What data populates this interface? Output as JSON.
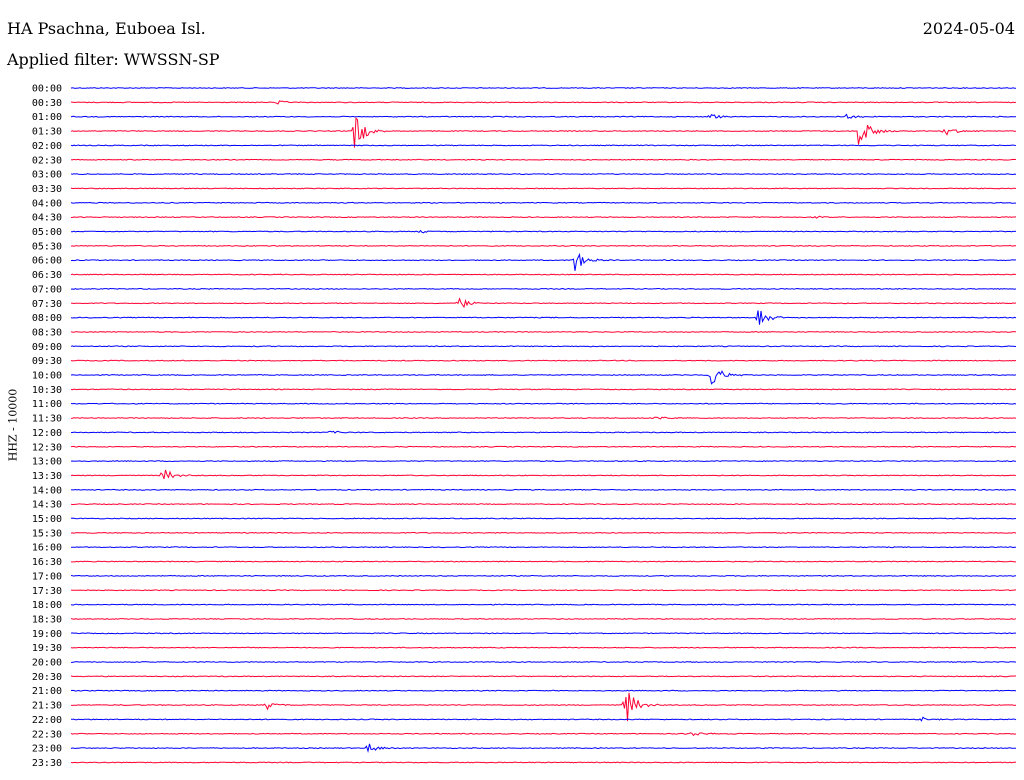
{
  "header": {
    "station": "HA Psachna, Euboea Isl.",
    "date": "2024-05-04",
    "filter": "Applied filter: WWSSN-SP"
  },
  "chart_data": {
    "type": "line",
    "title": "HA Psachna, Euboea Isl.",
    "subtitle": "Applied filter: WWSSN-SP",
    "date": "2024-05-04",
    "ylabel": "HHZ - 10000",
    "trace_colors": [
      "#0000ff",
      "#ff0033"
    ],
    "rows": [
      "00:00",
      "00:30",
      "01:00",
      "01:30",
      "02:00",
      "02:30",
      "03:00",
      "03:30",
      "04:00",
      "04:30",
      "05:00",
      "05:30",
      "06:00",
      "06:30",
      "07:00",
      "07:30",
      "08:00",
      "08:30",
      "09:00",
      "09:30",
      "10:00",
      "10:30",
      "11:00",
      "11:30",
      "12:00",
      "12:30",
      "13:00",
      "13:30",
      "14:00",
      "14:30",
      "15:00",
      "15:30",
      "16:00",
      "16:30",
      "17:00",
      "17:30",
      "18:00",
      "18:30",
      "19:00",
      "19:30",
      "20:00",
      "20:30",
      "21:00",
      "21:30",
      "22:00",
      "22:30",
      "23:00",
      "23:30"
    ],
    "events": [
      {
        "row": "01:30",
        "minute": 9.0,
        "amplitude": 2.5
      },
      {
        "row": "01:30",
        "minute": 25.0,
        "amplitude": 2.5
      },
      {
        "row": "01:30",
        "minute": 27.7,
        "amplitude": 0.8
      },
      {
        "row": "00:30",
        "minute": 6.5,
        "amplitude": 0.3
      },
      {
        "row": "01:00",
        "minute": 20.3,
        "amplitude": 0.4
      },
      {
        "row": "01:00",
        "minute": 24.6,
        "amplitude": 0.4
      },
      {
        "row": "05:00",
        "minute": 11.0,
        "amplitude": 0.3
      },
      {
        "row": "04:30",
        "minute": 23.6,
        "amplitude": 0.3
      },
      {
        "row": "06:00",
        "minute": 16.0,
        "amplitude": 1.4
      },
      {
        "row": "07:30",
        "minute": 12.3,
        "amplitude": 0.9
      },
      {
        "row": "08:00",
        "minute": 21.8,
        "amplitude": 1.2
      },
      {
        "row": "10:00",
        "minute": 20.3,
        "amplitude": 1.8
      },
      {
        "row": "11:30",
        "minute": 18.6,
        "amplitude": 0.3
      },
      {
        "row": "12:00",
        "minute": 8.2,
        "amplitude": 0.3
      },
      {
        "row": "13:30",
        "minute": 2.9,
        "amplitude": 1.1
      },
      {
        "row": "21:30",
        "minute": 6.2,
        "amplitude": 0.6
      },
      {
        "row": "21:30",
        "minute": 17.6,
        "amplitude": 2.6
      },
      {
        "row": "22:30",
        "minute": 19.6,
        "amplitude": 0.5
      },
      {
        "row": "23:00",
        "minute": 9.4,
        "amplitude": 0.7
      },
      {
        "row": "22:00",
        "minute": 27.0,
        "amplitude": 0.3
      }
    ]
  }
}
